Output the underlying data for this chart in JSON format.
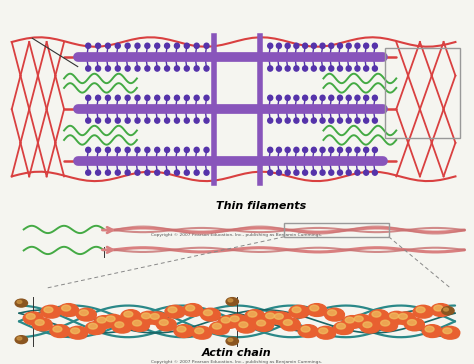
{
  "background_color": "#f5f5f0",
  "fig_width": 4.74,
  "fig_height": 3.64,
  "dpi": 100,
  "copyright_text": "Copyright © 2007 Pearson Education, Inc., publishing as Benjamin Cummings.",
  "title_thin": "Thin filaments",
  "title_actin": "Actin chain",
  "colors": {
    "red_filament": "#d94040",
    "red_filament2": "#e05060",
    "purple_thick": "#8855bb",
    "purple_bridge": "#5533aa",
    "green_wave": "#44aa44",
    "salmon_filament": "#d98080",
    "salmon_dark": "#c87070",
    "actin_ball": "#e86030",
    "actin_highlight": "#f0c060",
    "actin_shadow": "#c04020",
    "teal_strand": "#2a8888",
    "teal_dark": "#1a6666",
    "brown_ball": "#8a5520",
    "gray_box": "#888888",
    "background": "#f5f5f0"
  }
}
